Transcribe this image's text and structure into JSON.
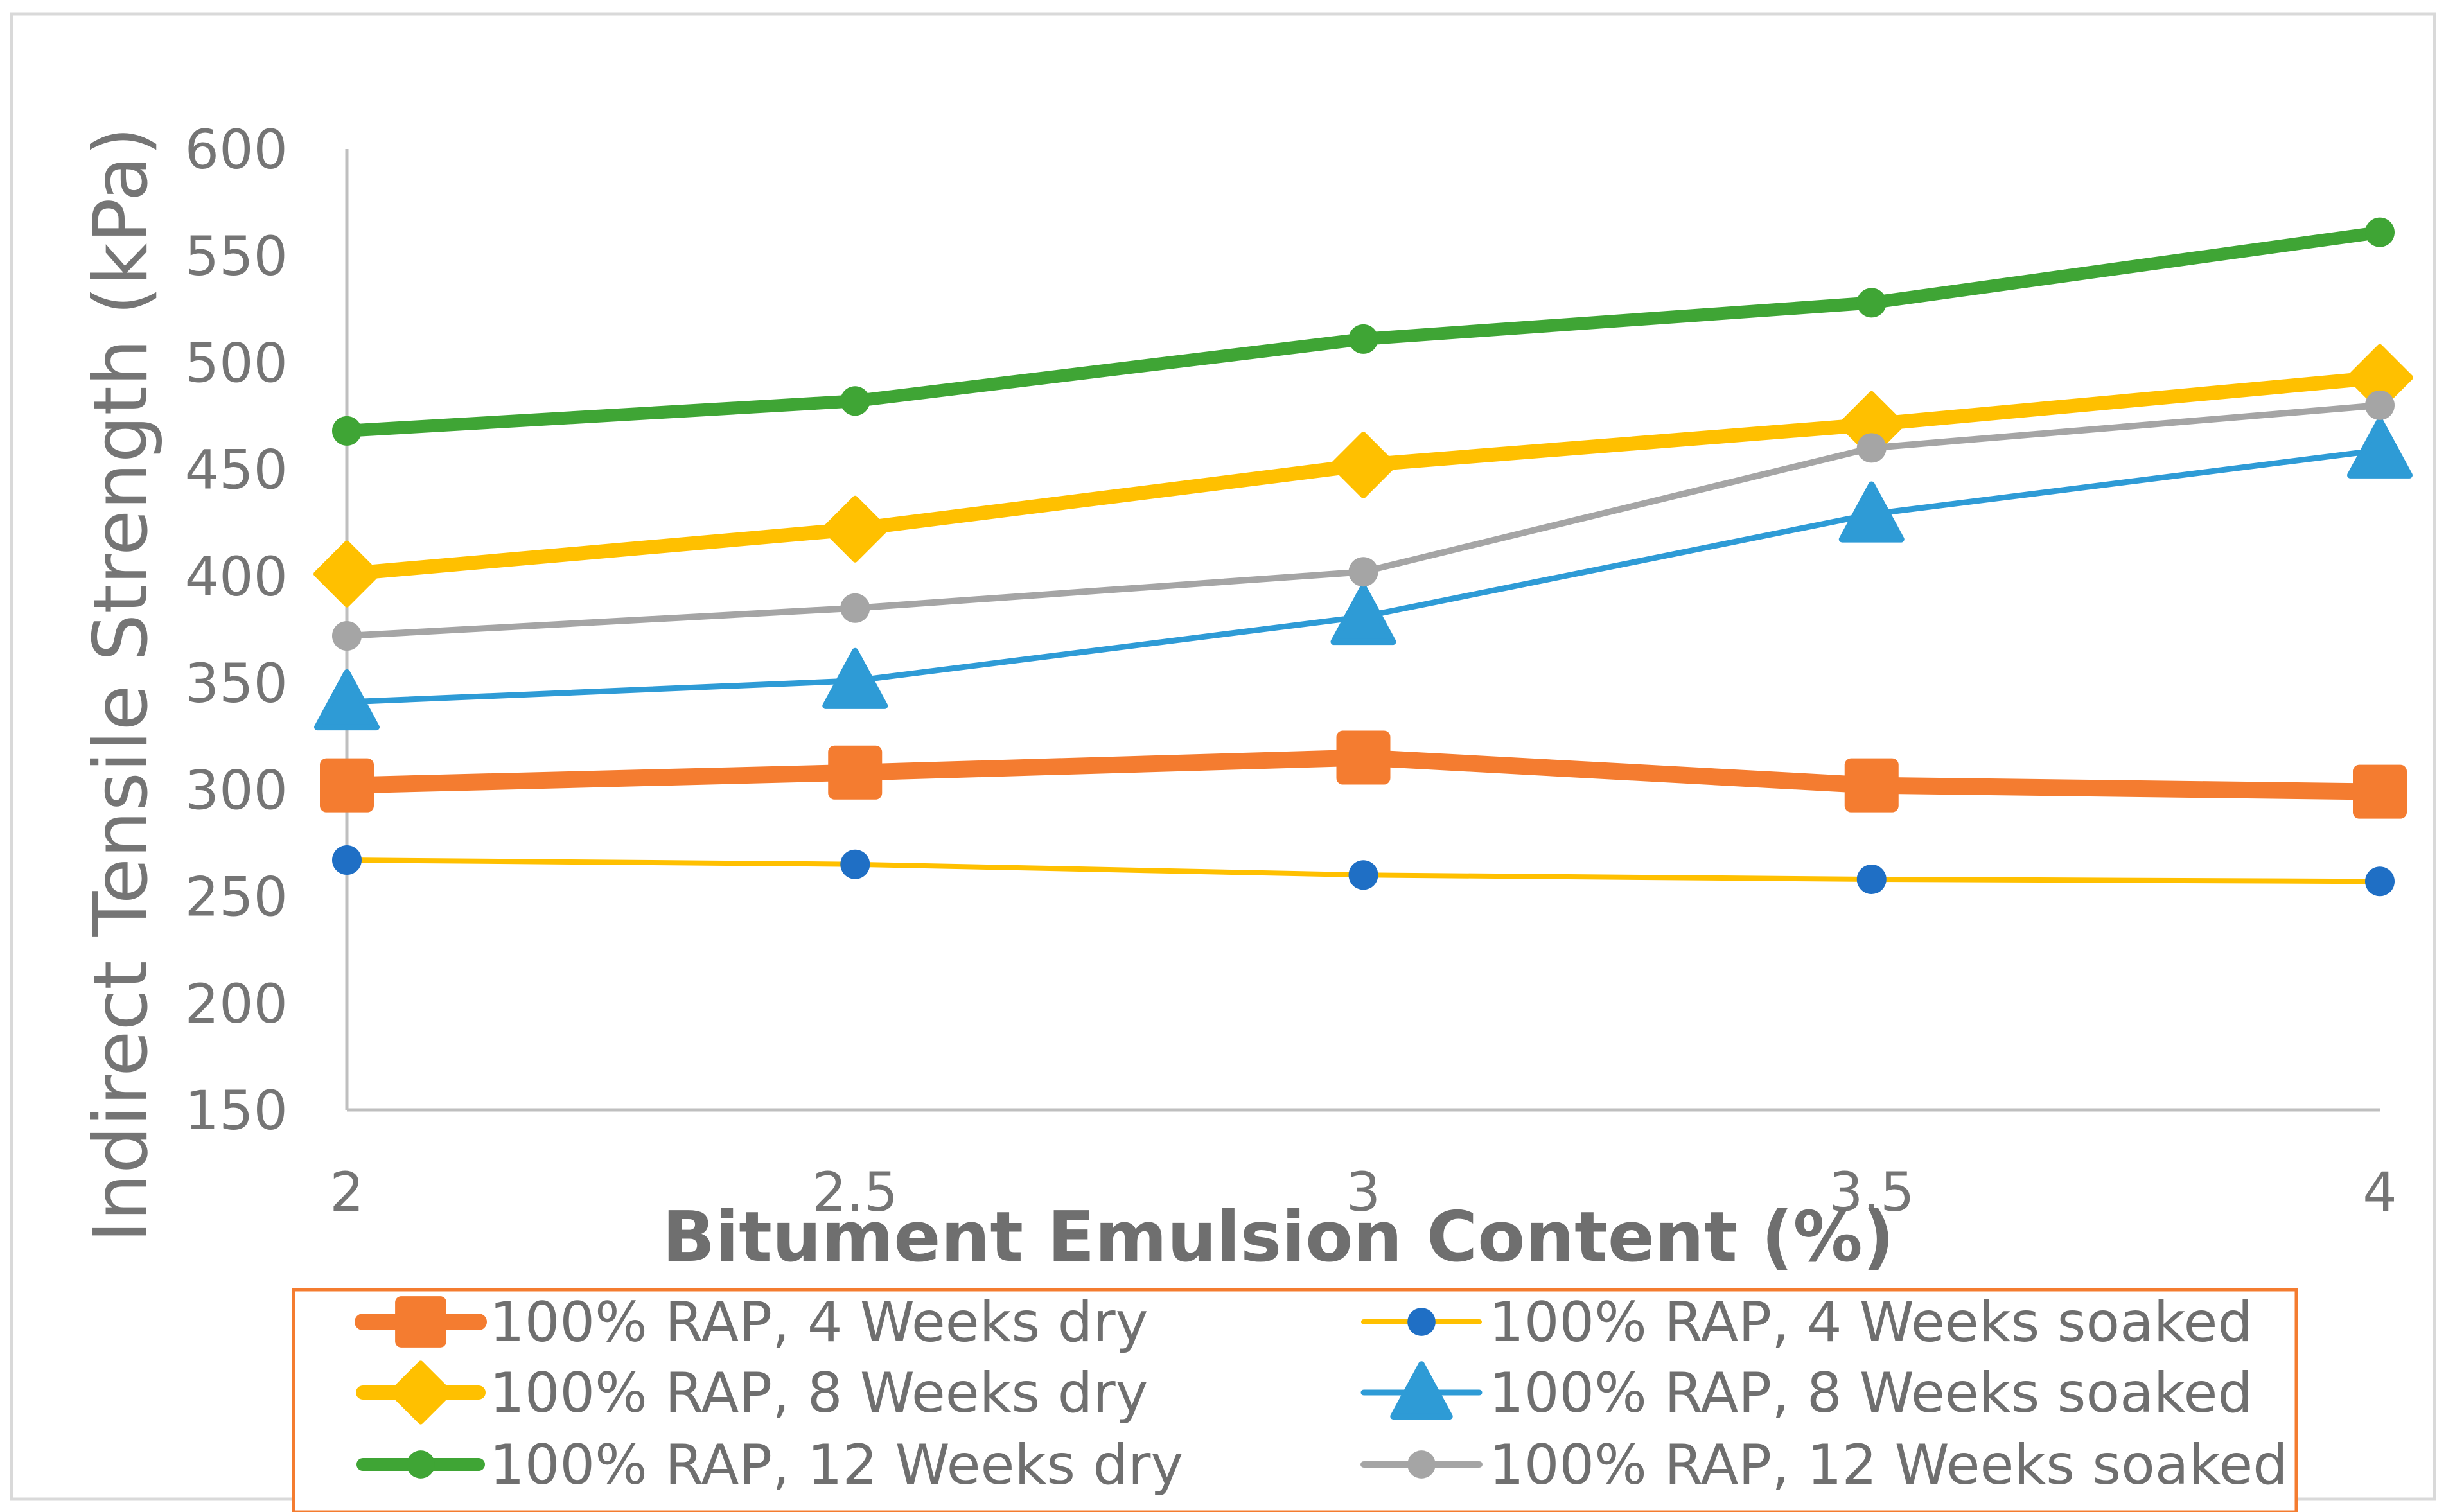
{
  "chart_data": {
    "type": "line",
    "title": "",
    "xlabel": "Bitument Emulsion Content (%)",
    "ylabel": "Indirect Tensile Strength (kPa)",
    "x": [
      2,
      2.5,
      3,
      3.5,
      4
    ],
    "x_tick_labels": [
      "2",
      "2.5",
      "3",
      "3.5",
      "4"
    ],
    "ylim": [
      150,
      600
    ],
    "y_ticks": [
      150,
      200,
      250,
      300,
      350,
      400,
      450,
      500,
      550,
      600
    ],
    "y_tick_labels": [
      "150",
      "200",
      "250",
      "300",
      "350",
      "400",
      "450",
      "500",
      "550",
      "600"
    ],
    "grid": false,
    "legend_position": "bottom",
    "series": [
      {
        "name": "100% RAP, 4 Weeks dry",
        "values": [
          302,
          308,
          315,
          302,
          299
        ],
        "line_color": "#F47C30",
        "marker_color": "#F47C30",
        "marker": "square"
      },
      {
        "name": "100% RAP, 4 Weeks soaked",
        "values": [
          267,
          265,
          260,
          258,
          257
        ],
        "line_color": "#FFC000",
        "marker_color": "#1F6FC5",
        "marker": "circle"
      },
      {
        "name": "100% RAP, 8 Weeks dry",
        "values": [
          401,
          422,
          452,
          471,
          493
        ],
        "line_color": "#FFC000",
        "marker_color": "#FFC000",
        "marker": "diamond"
      },
      {
        "name": "100% RAP, 8 Weeks soaked",
        "values": [
          341,
          351,
          381,
          429,
          459
        ],
        "line_color": "#2E9BD6",
        "marker_color": "#2E9BD6",
        "marker": "triangle"
      },
      {
        "name": "100% RAP, 12 Weeks dry",
        "values": [
          468,
          482,
          511,
          528,
          561
        ],
        "line_color": "#3FA535",
        "marker_color": "#3FA535",
        "marker": "circle"
      },
      {
        "name": "100% RAP, 12 Weeks soaked",
        "values": [
          372,
          385,
          402,
          460,
          480
        ],
        "line_color": "#A5A5A5",
        "marker_color": "#A5A5A5",
        "marker": "circle"
      }
    ]
  },
  "colors": {
    "axis": "#BFBFBF",
    "frame": "#D9D9D9",
    "legend_border": "#F47C30",
    "text": "#757575"
  }
}
